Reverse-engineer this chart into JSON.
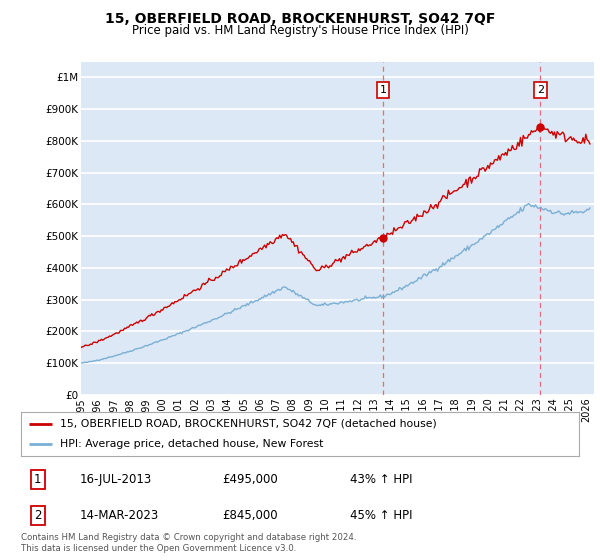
{
  "title": "15, OBERFIELD ROAD, BROCKENHURST, SO42 7QF",
  "subtitle": "Price paid vs. HM Land Registry's House Price Index (HPI)",
  "ylabel_ticks": [
    "£0",
    "£100K",
    "£200K",
    "£300K",
    "£400K",
    "£500K",
    "£600K",
    "£700K",
    "£800K",
    "£900K",
    "£1M"
  ],
  "ytick_values": [
    0,
    100000,
    200000,
    300000,
    400000,
    500000,
    600000,
    700000,
    800000,
    900000,
    1000000
  ],
  "ylim": [
    0,
    1050000
  ],
  "xlim_start": 1995.0,
  "xlim_end": 2026.5,
  "sale1_x": 2013.54,
  "sale1_y": 495000,
  "sale2_x": 2023.2,
  "sale2_y": 845000,
  "vline1_x": 2013.54,
  "vline2_x": 2023.2,
  "legend_line1": "15, OBERFIELD ROAD, BROCKENHURST, SO42 7QF (detached house)",
  "legend_line2": "HPI: Average price, detached house, New Forest",
  "table_row1": [
    "1",
    "16-JUL-2013",
    "£495,000",
    "43% ↑ HPI"
  ],
  "table_row2": [
    "2",
    "14-MAR-2023",
    "£845,000",
    "45% ↑ HPI"
  ],
  "footnote": "Contains HM Land Registry data © Crown copyright and database right 2024.\nThis data is licensed under the Open Government Licence v3.0.",
  "line_color_red": "#cc0000",
  "line_color_blue": "#7bafd4",
  "bg_color": "#dce8f5",
  "grid_color": "#ffffff",
  "vline_color": "#e07070"
}
